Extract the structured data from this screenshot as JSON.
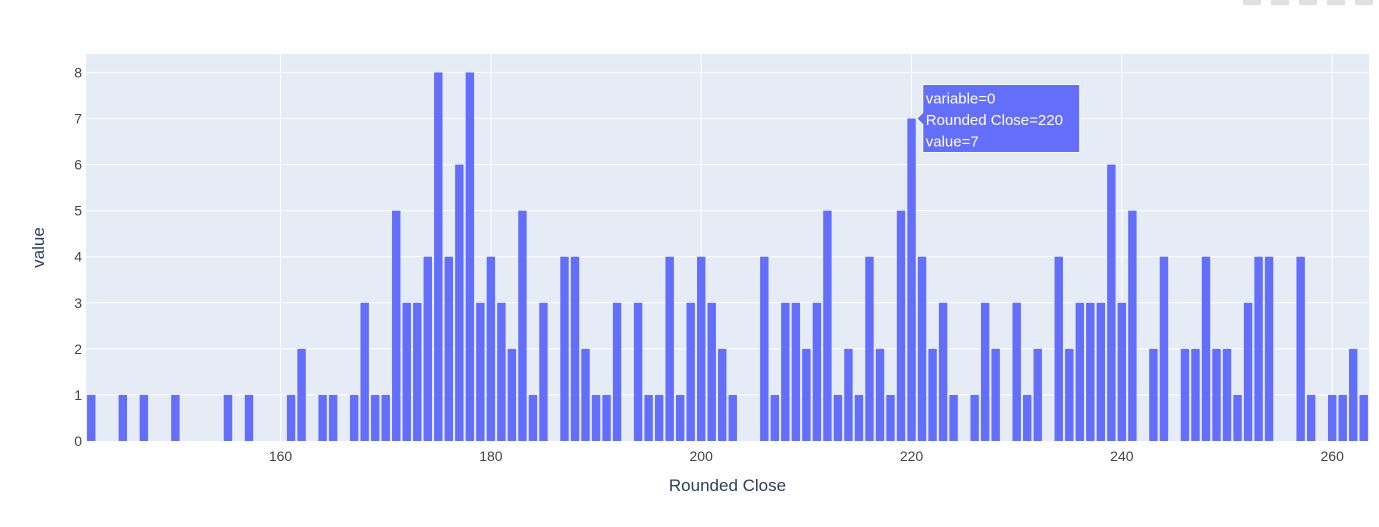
{
  "chart_data": {
    "type": "bar",
    "xlabel": "Rounded Close",
    "ylabel": "value",
    "xlim": [
      141.5,
      263.5
    ],
    "ylim": [
      0,
      8.4
    ],
    "xticks": [
      160,
      180,
      200,
      220,
      240,
      260
    ],
    "yticks": [
      0,
      1,
      2,
      3,
      4,
      5,
      6,
      7,
      8
    ],
    "grid": true,
    "plot_bg": "#e5ecf6",
    "bar_color": "#636efa",
    "series": [
      {
        "x": [
          142,
          145,
          147,
          150,
          155,
          157,
          161,
          162,
          164,
          165,
          167,
          168,
          169,
          170,
          171,
          172,
          173,
          174,
          175,
          176,
          177,
          178,
          179,
          180,
          181,
          182,
          183,
          184,
          185,
          187,
          188,
          189,
          190,
          191,
          192,
          194,
          195,
          196,
          197,
          198,
          199,
          200,
          201,
          202,
          203,
          206,
          207,
          208,
          209,
          210,
          211,
          212,
          213,
          214,
          215,
          216,
          217,
          218,
          219,
          220,
          221,
          222,
          223,
          224,
          226,
          227,
          228,
          230,
          231,
          232,
          234,
          235,
          236,
          237,
          238,
          239,
          240,
          241,
          243,
          244,
          246,
          247,
          248,
          249,
          250,
          251,
          252,
          253,
          254,
          257,
          258,
          260,
          261,
          262,
          263
        ],
        "values": [
          1,
          1,
          1,
          1,
          1,
          1,
          1,
          2,
          1,
          1,
          1,
          3,
          1,
          1,
          5,
          3,
          3,
          4,
          8,
          4,
          6,
          8,
          3,
          4,
          3,
          2,
          5,
          1,
          3,
          4,
          4,
          2,
          1,
          1,
          3,
          3,
          1,
          1,
          4,
          1,
          3,
          4,
          3,
          2,
          1,
          4,
          1,
          3,
          3,
          2,
          3,
          5,
          1,
          2,
          1,
          4,
          2,
          1,
          5,
          7,
          4,
          2,
          3,
          1,
          1,
          3,
          2,
          3,
          1,
          2,
          4,
          2,
          3,
          3,
          3,
          6,
          3,
          5,
          2,
          4,
          2,
          2,
          4,
          2,
          2,
          1,
          3,
          4,
          4,
          4,
          1,
          1,
          1,
          2,
          1
        ]
      }
    ],
    "hover": {
      "x": 220,
      "value": 7,
      "lines": [
        "variable=0",
        "Rounded Close=220",
        "value=7"
      ]
    }
  }
}
